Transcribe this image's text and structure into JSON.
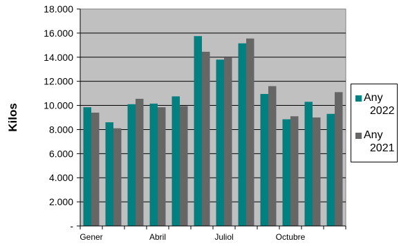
{
  "chart_data": {
    "type": "bar",
    "title": "",
    "xlabel": "",
    "ylabel": "Kilos",
    "ylim": [
      0,
      18000
    ],
    "y_ticks": [
      {
        "value": 0,
        "label": "-"
      },
      {
        "value": 2000,
        "label": "2.000"
      },
      {
        "value": 4000,
        "label": "4.000"
      },
      {
        "value": 6000,
        "label": "6.000"
      },
      {
        "value": 8000,
        "label": "8.000"
      },
      {
        "value": 10000,
        "label": "10.000"
      },
      {
        "value": 12000,
        "label": "12.000"
      },
      {
        "value": 14000,
        "label": "14.000"
      },
      {
        "value": 16000,
        "label": "16.000"
      },
      {
        "value": 18000,
        "label": "18.000"
      }
    ],
    "categories": [
      "Gener",
      "",
      "",
      "Abril",
      "",
      "",
      "Juliol",
      "",
      "",
      "Octubre",
      "",
      ""
    ],
    "series": [
      {
        "name": "Any 2022",
        "color": "#008080",
        "values": [
          9850,
          8600,
          10100,
          10150,
          10750,
          15750,
          13800,
          15150,
          10950,
          8850,
          10300,
          9300
        ]
      },
      {
        "name": "Any 2021",
        "color": "#666666",
        "values": [
          9400,
          8100,
          10550,
          9850,
          9950,
          14450,
          13950,
          15550,
          11600,
          9100,
          9000,
          11100
        ]
      }
    ],
    "grid": true,
    "plot_background": "#c0c0c0",
    "legend_position": "right"
  },
  "legend": {
    "items": [
      {
        "line1": "Any",
        "line2": "2022",
        "color": "#008080"
      },
      {
        "line1": "Any",
        "line2": "2021",
        "color": "#666666"
      }
    ]
  }
}
